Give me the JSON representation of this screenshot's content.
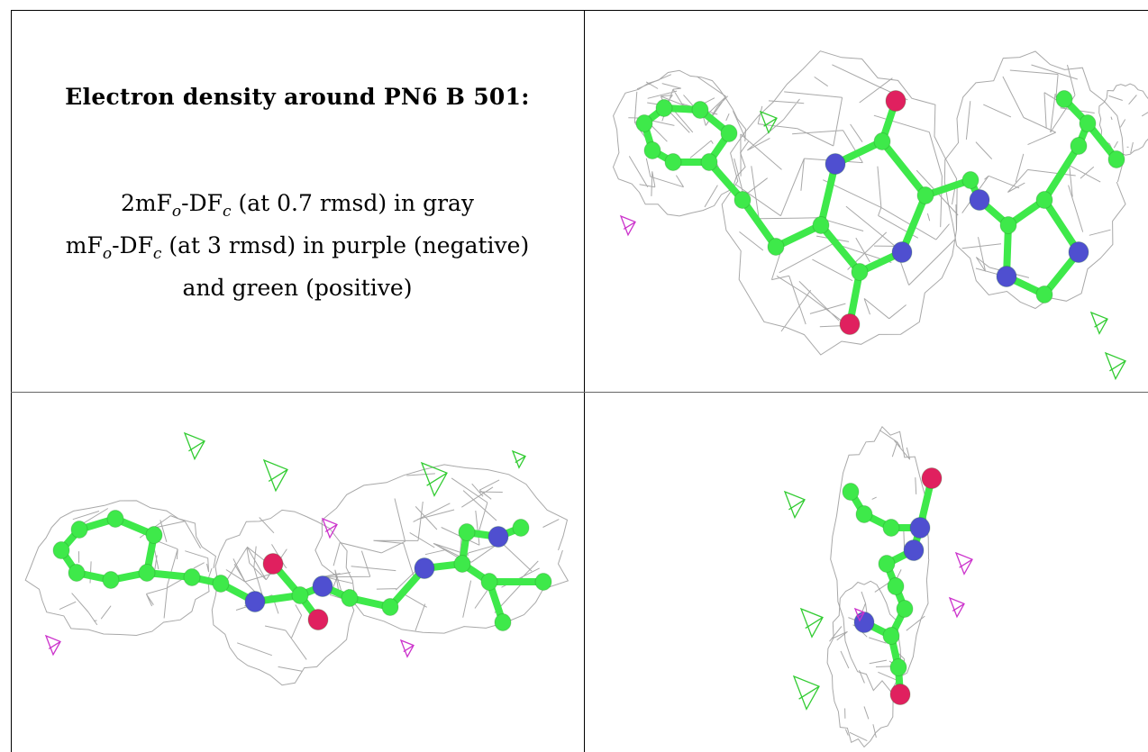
{
  "caption": {
    "title": "Electron density around PN6 B 501:",
    "line1_prefix": "2mF",
    "line1_sub1": "o",
    "line1_mid": "-DF",
    "line1_sub2": "c",
    "line1_suffix": " (at 0.7 rmsd) in gray",
    "line2_prefix": "mF",
    "line2_sub1": "o",
    "line2_mid": "-DF",
    "line2_sub2": "c",
    "line2_suffix": " (at 3 rmsd) in purple (negative)",
    "line3": "and green (positive)"
  },
  "colors": {
    "carbon": "#3ee94a",
    "nitrogen": "#4f4fd0",
    "oxygen": "#e0205f",
    "mesh": "#9a9a9a",
    "negative_density": "#cc33cc",
    "positive_density": "#33cc33"
  }
}
